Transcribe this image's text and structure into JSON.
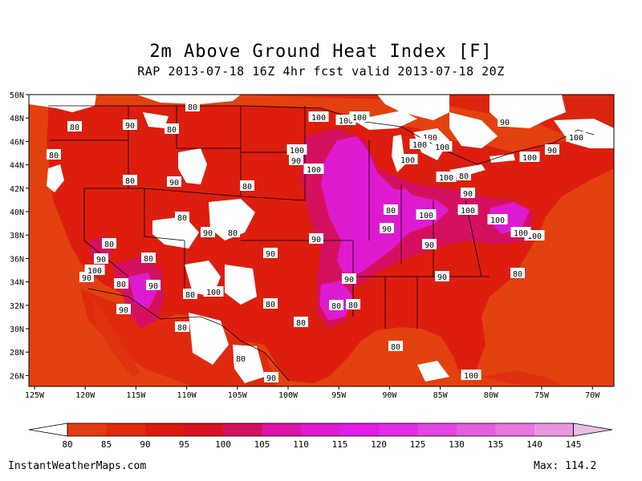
{
  "title": "2m Above Ground Heat Index [F]",
  "subtitle": "RAP 2013-07-18 16Z 4hr fcst valid 2013-07-18 20Z",
  "lat_labels": [
    "50N",
    "48N",
    "46N",
    "44N",
    "42N",
    "40N",
    "38N",
    "36N",
    "34N",
    "32N",
    "30N",
    "28N",
    "26N"
  ],
  "lon_labels": [
    "125W",
    "120W",
    "115W",
    "110W",
    "105W",
    "100W",
    "95W",
    "90W",
    "85W",
    "80W",
    "75W",
    "70W"
  ],
  "colorbar": {
    "labels": [
      "80",
      "85",
      "90",
      "95",
      "100",
      "105",
      "110",
      "115",
      "120",
      "125",
      "130",
      "135",
      "140",
      "145"
    ],
    "colors": [
      "#e23b13",
      "#e3280c",
      "#dd1a10",
      "#d81222",
      "#d5115f",
      "#dc14a8",
      "#e018d2",
      "#e11ce6",
      "#e12ee6",
      "#e246e0",
      "#e45ee0",
      "#e678df",
      "#e996e1",
      "#e9bde6"
    ]
  },
  "colors": {
    "ocean": "#e3400f",
    "land": "#dd1e0e",
    "white": "#ffffff",
    "pink": "#d5115f",
    "magenta": "#de1ad0"
  },
  "contour_labels": [
    "80",
    "80",
    "90",
    "80",
    "80",
    "80",
    "90",
    "80",
    "80",
    "90",
    "80",
    "80",
    "90",
    "80",
    "90",
    "100",
    "80",
    "90",
    "100",
    "80",
    "90",
    "80",
    "80",
    "90",
    "80",
    "80",
    "90",
    "80",
    "100",
    "90",
    "80",
    "100",
    "100",
    "100",
    "100",
    "100",
    "80",
    "90",
    "90",
    "90",
    "90",
    "80",
    "80",
    "90",
    "100",
    "100",
    "100",
    "100",
    "100",
    "100",
    "100",
    "100",
    "100",
    "100",
    "80",
    "90",
    "90",
    "100",
    "90",
    "100"
  ],
  "credit": "InstantWeatherMaps.com",
  "max_label": "Max: 114.2"
}
